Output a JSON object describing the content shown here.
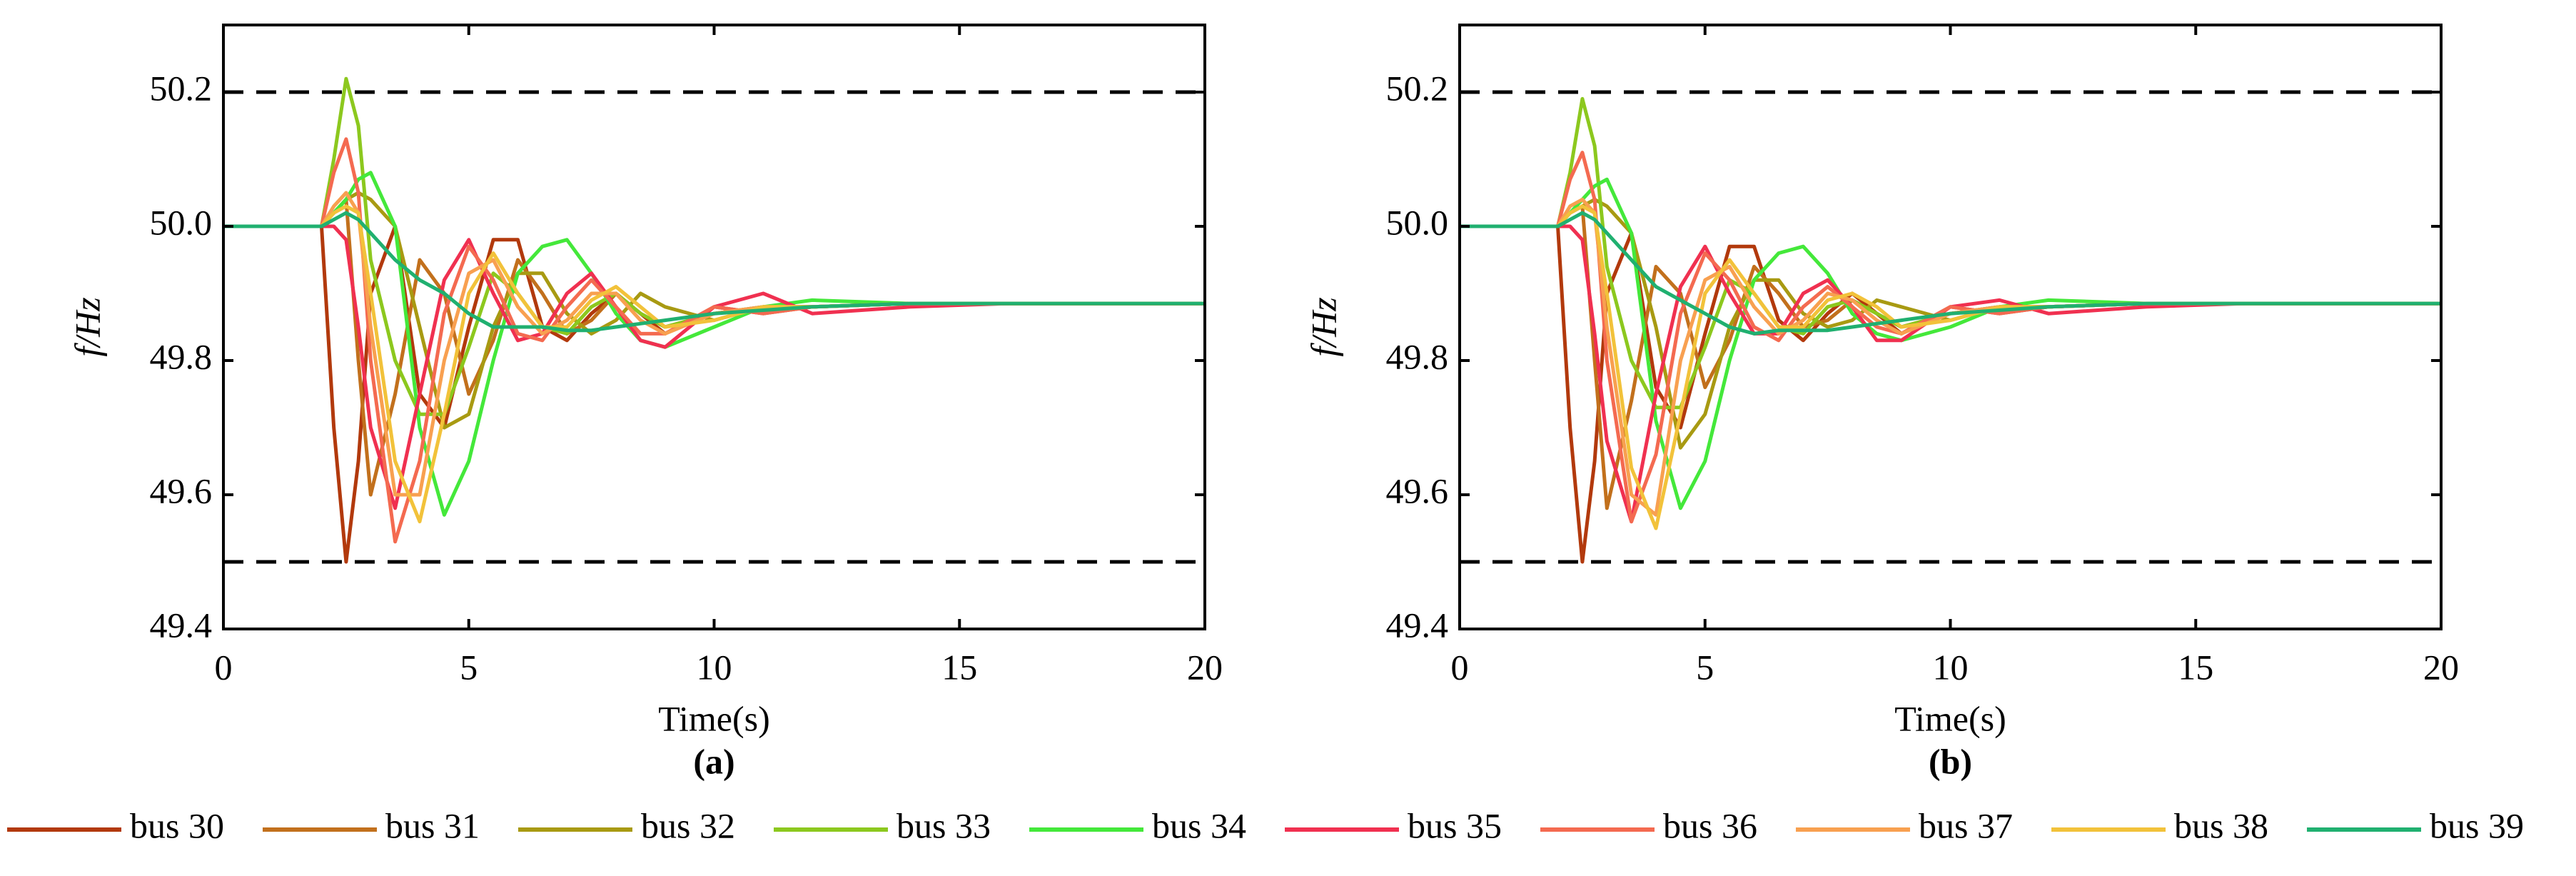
{
  "chart_data": [
    {
      "type": "line",
      "caption": "(a)",
      "xlabel": "Time(s)",
      "ylabel": "f/Hz",
      "xlim": [
        0,
        20
      ],
      "xticks": [
        0,
        5,
        10,
        15,
        20
      ],
      "ylim": [
        49.4,
        50.3
      ],
      "yticks": [
        49.4,
        49.6,
        49.8,
        {
          "value": 50,
          "label": "50.0"
        },
        50.2
      ],
      "reference_lines": [
        50.2,
        49.5
      ],
      "x": [
        0,
        1,
        2,
        2.25,
        2.5,
        2.75,
        3,
        3.5,
        4,
        4.5,
        5,
        5.5,
        6,
        6.5,
        7,
        7.5,
        8,
        8.5,
        9,
        10,
        11,
        12,
        14,
        16,
        18,
        20
      ],
      "series": [
        {
          "name": "bus 30",
          "color": "#b2390c",
          "values": [
            50,
            50,
            50,
            49.7,
            49.5,
            49.65,
            49.9,
            50.0,
            49.75,
            49.7,
            49.85,
            49.98,
            49.98,
            49.85,
            49.83,
            49.87,
            49.9,
            49.87,
            49.84,
            49.88,
            49.87,
            49.88,
            49.885,
            49.885,
            49.885,
            49.885
          ]
        },
        {
          "name": "bus 31",
          "color": "#c2701c",
          "values": [
            50,
            50,
            50,
            50.02,
            50.04,
            49.8,
            49.6,
            49.75,
            49.95,
            49.9,
            49.75,
            49.83,
            49.95,
            49.9,
            49.84,
            49.86,
            49.9,
            49.87,
            49.85,
            49.87,
            49.88,
            49.88,
            49.885,
            49.885,
            49.885,
            49.885
          ]
        },
        {
          "name": "bus 32",
          "color": "#a89a12",
          "values": [
            50,
            50,
            50,
            50.02,
            50.04,
            50.05,
            50.04,
            50.0,
            49.85,
            49.7,
            49.72,
            49.85,
            49.93,
            49.93,
            49.87,
            49.84,
            49.86,
            49.9,
            49.88,
            49.86,
            49.88,
            49.88,
            49.885,
            49.885,
            49.885,
            49.885
          ]
        },
        {
          "name": "bus 33",
          "color": "#8cc81e",
          "values": [
            50,
            50,
            50,
            50.1,
            50.22,
            50.15,
            49.95,
            49.8,
            49.72,
            49.72,
            49.82,
            49.93,
            49.9,
            49.85,
            49.84,
            49.88,
            49.9,
            49.87,
            49.85,
            49.87,
            49.88,
            49.88,
            49.885,
            49.885,
            49.885,
            49.885
          ]
        },
        {
          "name": "bus 34",
          "color": "#44e83a",
          "values": [
            50,
            50,
            50,
            50.02,
            50.04,
            50.07,
            50.08,
            50.0,
            49.7,
            49.57,
            49.65,
            49.8,
            49.93,
            49.97,
            49.98,
            49.93,
            49.87,
            49.83,
            49.82,
            49.85,
            49.88,
            49.89,
            49.885,
            49.885,
            49.885,
            49.885
          ]
        },
        {
          "name": "bus 35",
          "color": "#f03050",
          "values": [
            50,
            50,
            50,
            50.0,
            49.98,
            49.85,
            49.7,
            49.58,
            49.75,
            49.92,
            49.98,
            49.9,
            49.83,
            49.84,
            49.9,
            49.93,
            49.88,
            49.83,
            49.82,
            49.88,
            49.9,
            49.87,
            49.88,
            49.885,
            49.885,
            49.885
          ]
        },
        {
          "name": "bus 36",
          "color": "#f46a50",
          "values": [
            50,
            50,
            50,
            50.08,
            50.13,
            50.05,
            49.8,
            49.53,
            49.65,
            49.87,
            49.97,
            49.92,
            49.84,
            49.83,
            49.88,
            49.92,
            49.88,
            49.84,
            49.84,
            49.88,
            49.87,
            49.88,
            49.885,
            49.885,
            49.885,
            49.885
          ]
        },
        {
          "name": "bus 37",
          "color": "#f8a050",
          "values": [
            50,
            50,
            50,
            50.03,
            50.05,
            50.02,
            49.85,
            49.6,
            49.6,
            49.8,
            49.93,
            49.95,
            49.88,
            49.84,
            49.86,
            49.9,
            49.9,
            49.86,
            49.84,
            49.87,
            49.88,
            49.88,
            49.885,
            49.885,
            49.885,
            49.885
          ]
        },
        {
          "name": "bus 38",
          "color": "#f2c23a",
          "values": [
            50,
            50,
            50,
            50.02,
            50.03,
            50.02,
            49.9,
            49.65,
            49.56,
            49.72,
            49.9,
            49.96,
            49.9,
            49.85,
            49.85,
            49.89,
            49.91,
            49.88,
            49.85,
            49.86,
            49.88,
            49.88,
            49.885,
            49.885,
            49.885,
            49.885
          ]
        },
        {
          "name": "bus 39",
          "color": "#20b070",
          "values": [
            50,
            50,
            50,
            50.01,
            50.02,
            50.01,
            49.99,
            49.95,
            49.92,
            49.9,
            49.87,
            49.85,
            49.85,
            49.85,
            49.845,
            49.845,
            49.85,
            49.855,
            49.86,
            49.87,
            49.875,
            49.88,
            49.885,
            49.885,
            49.885,
            49.885
          ]
        }
      ]
    },
    {
      "type": "line",
      "caption": "(b)",
      "xlabel": "Time(s)",
      "ylabel": "f/Hz",
      "xlim": [
        0,
        20
      ],
      "xticks": [
        0,
        5,
        10,
        15,
        20
      ],
      "ylim": [
        49.4,
        50.3
      ],
      "yticks": [
        49.4,
        49.6,
        49.8,
        {
          "value": 50,
          "label": "50.0"
        },
        50.2
      ],
      "reference_lines": [
        50.2,
        49.5
      ],
      "x": [
        0,
        1,
        2,
        2.25,
        2.5,
        2.75,
        3,
        3.5,
        4,
        4.5,
        5,
        5.5,
        6,
        6.5,
        7,
        7.5,
        8,
        8.5,
        9,
        10,
        11,
        12,
        14,
        16,
        18,
        20
      ],
      "series": [
        {
          "name": "bus 30",
          "color": "#b2390c",
          "values": [
            50,
            50,
            50,
            49.7,
            49.5,
            49.65,
            49.9,
            49.99,
            49.76,
            49.7,
            49.84,
            49.97,
            49.97,
            49.86,
            49.83,
            49.87,
            49.9,
            49.87,
            49.84,
            49.88,
            49.87,
            49.88,
            49.885,
            49.885,
            49.885,
            49.885
          ]
        },
        {
          "name": "bus 31",
          "color": "#c2701c",
          "values": [
            50,
            50,
            50,
            50.02,
            50.03,
            49.8,
            49.58,
            49.74,
            49.94,
            49.9,
            49.76,
            49.83,
            49.94,
            49.9,
            49.85,
            49.86,
            49.89,
            49.87,
            49.85,
            49.87,
            49.88,
            49.88,
            49.885,
            49.885,
            49.885,
            49.885
          ]
        },
        {
          "name": "bus 32",
          "color": "#a89a12",
          "values": [
            50,
            50,
            50,
            50.02,
            50.03,
            50.04,
            50.03,
            49.99,
            49.85,
            49.67,
            49.72,
            49.85,
            49.92,
            49.92,
            49.87,
            49.85,
            49.86,
            49.89,
            49.88,
            49.86,
            49.88,
            49.88,
            49.885,
            49.885,
            49.885,
            49.885
          ]
        },
        {
          "name": "bus 33",
          "color": "#8cc81e",
          "values": [
            50,
            50,
            50,
            50.08,
            50.19,
            50.12,
            49.94,
            49.8,
            49.73,
            49.73,
            49.82,
            49.92,
            49.9,
            49.85,
            49.84,
            49.88,
            49.89,
            49.87,
            49.85,
            49.87,
            49.88,
            49.88,
            49.885,
            49.885,
            49.885,
            49.885
          ]
        },
        {
          "name": "bus 34",
          "color": "#44e83a",
          "values": [
            50,
            50,
            50,
            50.02,
            50.04,
            50.06,
            50.07,
            49.99,
            49.71,
            49.58,
            49.65,
            49.8,
            49.92,
            49.96,
            49.97,
            49.93,
            49.87,
            49.84,
            49.83,
            49.85,
            49.88,
            49.89,
            49.885,
            49.885,
            49.885,
            49.885
          ]
        },
        {
          "name": "bus 35",
          "color": "#f03050",
          "values": [
            50,
            50,
            50,
            50.0,
            49.98,
            49.84,
            49.68,
            49.56,
            49.75,
            49.91,
            49.97,
            49.9,
            49.84,
            49.84,
            49.9,
            49.92,
            49.88,
            49.83,
            49.83,
            49.88,
            49.89,
            49.87,
            49.88,
            49.885,
            49.885,
            49.885
          ]
        },
        {
          "name": "bus 36",
          "color": "#f46a50",
          "values": [
            50,
            50,
            50,
            50.07,
            50.11,
            50.04,
            49.8,
            49.56,
            49.66,
            49.87,
            49.96,
            49.92,
            49.85,
            49.83,
            49.88,
            49.91,
            49.88,
            49.85,
            49.84,
            49.88,
            49.87,
            49.88,
            49.885,
            49.885,
            49.885,
            49.885
          ]
        },
        {
          "name": "bus 37",
          "color": "#f8a050",
          "values": [
            50,
            50,
            50,
            50.03,
            50.04,
            50.02,
            49.85,
            49.6,
            49.57,
            49.8,
            49.92,
            49.94,
            49.88,
            49.84,
            49.86,
            49.9,
            49.89,
            49.86,
            49.84,
            49.87,
            49.88,
            49.88,
            49.885,
            49.885,
            49.885,
            49.885
          ]
        },
        {
          "name": "bus 38",
          "color": "#f2c23a",
          "values": [
            50,
            50,
            50,
            50.02,
            50.03,
            50.02,
            49.9,
            49.64,
            49.55,
            49.72,
            49.9,
            49.95,
            49.9,
            49.85,
            49.85,
            49.89,
            49.9,
            49.88,
            49.85,
            49.86,
            49.88,
            49.88,
            49.885,
            49.885,
            49.885,
            49.885
          ]
        },
        {
          "name": "bus 39",
          "color": "#20b070",
          "values": [
            50,
            50,
            50,
            50.01,
            50.02,
            50.01,
            49.99,
            49.95,
            49.91,
            49.89,
            49.87,
            49.85,
            49.84,
            49.845,
            49.845,
            49.845,
            49.85,
            49.855,
            49.86,
            49.87,
            49.875,
            49.88,
            49.885,
            49.885,
            49.885,
            49.885
          ]
        }
      ]
    }
  ]
}
